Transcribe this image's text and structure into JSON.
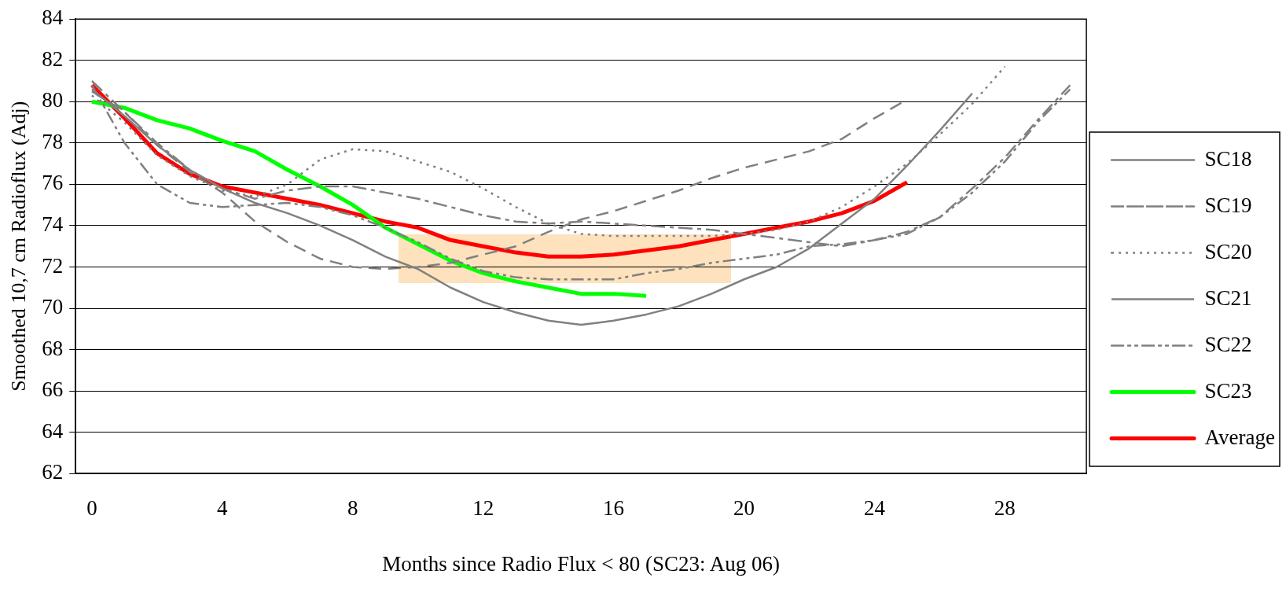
{
  "chart_data": {
    "type": "line",
    "xlabel": "Months since Radio Flux < 80 (SC23: Aug 06)",
    "ylabel": "Smoothed 10,7 cm Radioflux (Adj)",
    "xlim": [
      -0.5,
      30.5
    ],
    "xticks": [
      0,
      4,
      8,
      12,
      16,
      20,
      24,
      28
    ],
    "ylim": [
      62,
      84
    ],
    "yticks": [
      62,
      64,
      66,
      68,
      70,
      72,
      74,
      76,
      78,
      80,
      82,
      84
    ],
    "grid": "y",
    "legend": "right",
    "marker": "none",
    "series": [
      {
        "name": "SC18",
        "color": "#808080",
        "line_style": "solid",
        "x": [
          0,
          1,
          2,
          3,
          4,
          5,
          6,
          7,
          8,
          9,
          10,
          11,
          12,
          13,
          14,
          15,
          16,
          17,
          18,
          19,
          20,
          21,
          22,
          23,
          24,
          25,
          26,
          27
        ],
        "values": [
          80.6,
          79.3,
          77.9,
          76.7,
          75.8,
          75.1,
          74.6,
          74.0,
          73.3,
          72.5,
          71.9,
          71.0,
          70.3,
          69.8,
          69.4,
          69.2,
          69.4,
          69.7,
          70.1,
          70.7,
          71.4,
          72.0,
          72.9,
          74.1,
          75.3,
          76.9,
          78.6,
          80.4
        ]
      },
      {
        "name": "SC19",
        "color": "#808080",
        "line_style": "dashed",
        "x": [
          0,
          1,
          2,
          3,
          4,
          5,
          6,
          7,
          8,
          9,
          10,
          11,
          12,
          13,
          14,
          15,
          16,
          17,
          18,
          19,
          20,
          21,
          22,
          23,
          24,
          25
        ],
        "values": [
          80.5,
          79.5,
          77.9,
          76.6,
          75.6,
          74.2,
          73.2,
          72.4,
          72.0,
          71.9,
          72.0,
          72.2,
          72.6,
          73.0,
          73.7,
          74.3,
          74.7,
          75.2,
          75.7,
          76.3,
          76.8,
          77.2,
          77.6,
          78.2,
          79.2,
          80.1
        ]
      },
      {
        "name": "SC20",
        "color": "#808080",
        "line_style": "dotted",
        "x": [
          0,
          1,
          2,
          3,
          4,
          5,
          6,
          7,
          8,
          9,
          10,
          11,
          12,
          13,
          14,
          15,
          16,
          17,
          18,
          19,
          20,
          21,
          22,
          23,
          24,
          25,
          26,
          27,
          28
        ],
        "values": [
          80.3,
          79.0,
          77.4,
          76.4,
          75.7,
          75.4,
          76.0,
          77.2,
          77.7,
          77.6,
          77.1,
          76.6,
          75.8,
          74.9,
          74.1,
          73.6,
          73.5,
          73.5,
          73.5,
          73.5,
          73.6,
          73.8,
          74.2,
          74.9,
          75.9,
          77.0,
          78.4,
          79.9,
          81.7
        ]
      },
      {
        "name": "SC21",
        "color": "#808080",
        "line_style": "dashdot",
        "x": [
          0,
          1,
          2,
          3,
          4,
          5,
          6,
          7,
          8,
          9,
          10,
          11,
          12,
          13,
          14,
          15,
          16,
          17,
          18,
          19,
          20,
          21,
          22,
          23,
          24,
          25,
          26,
          27,
          28,
          29,
          30
        ],
        "values": [
          81.0,
          79.5,
          78.0,
          76.7,
          75.8,
          75.3,
          75.7,
          75.9,
          75.9,
          75.6,
          75.3,
          74.9,
          74.5,
          74.2,
          74.1,
          74.2,
          74.1,
          74.0,
          73.9,
          73.8,
          73.6,
          73.4,
          73.2,
          73.0,
          73.3,
          73.7,
          74.4,
          75.8,
          77.3,
          79.1,
          80.8
        ]
      },
      {
        "name": "SC22",
        "color": "#808080",
        "line_style": "dashdotdot",
        "x": [
          0,
          1,
          2,
          3,
          4,
          5,
          6,
          7,
          8,
          9,
          10,
          11,
          12,
          13,
          14,
          15,
          16,
          17,
          18,
          19,
          20,
          21,
          22,
          23,
          24,
          25,
          26,
          27,
          28,
          29,
          30
        ],
        "values": [
          80.8,
          78.0,
          76.0,
          75.1,
          74.9,
          75.0,
          75.1,
          74.9,
          74.5,
          73.9,
          73.2,
          72.4,
          71.8,
          71.5,
          71.4,
          71.4,
          71.4,
          71.7,
          71.9,
          72.2,
          72.4,
          72.6,
          73.0,
          73.1,
          73.3,
          73.6,
          74.4,
          75.6,
          77.1,
          79.0,
          80.6
        ]
      },
      {
        "name": "SC23",
        "color": "#00ff00",
        "line_style": "solid",
        "x": [
          0,
          1,
          2,
          3,
          4,
          5,
          6,
          7,
          8,
          9,
          10,
          11,
          12,
          13,
          14,
          15,
          16,
          17
        ],
        "values": [
          80.0,
          79.7,
          79.1,
          78.7,
          78.1,
          77.6,
          76.7,
          75.9,
          75.0,
          73.9,
          73.1,
          72.3,
          71.7,
          71.3,
          71.0,
          70.7,
          70.7,
          70.6
        ]
      },
      {
        "name": "Average",
        "color": "#ff0000",
        "line_style": "solid",
        "x": [
          0,
          1,
          2,
          3,
          4,
          5,
          6,
          7,
          8,
          9,
          10,
          11,
          12,
          13,
          14,
          15,
          16,
          17,
          18,
          19,
          20,
          21,
          22,
          23,
          24,
          25
        ],
        "values": [
          80.8,
          79.2,
          77.5,
          76.5,
          75.9,
          75.6,
          75.3,
          75.0,
          74.6,
          74.2,
          73.9,
          73.3,
          73.0,
          72.7,
          72.5,
          72.5,
          72.6,
          72.8,
          73.0,
          73.3,
          73.6,
          73.9,
          74.2,
          74.6,
          75.2,
          76.1
        ]
      }
    ]
  }
}
